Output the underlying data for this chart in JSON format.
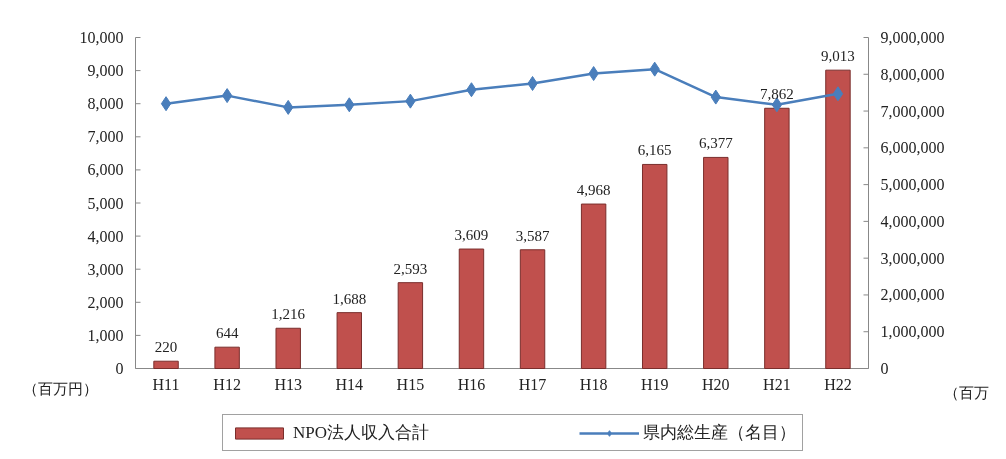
{
  "chart_data": {
    "type": "bar",
    "categories": [
      "H11",
      "H12",
      "H13",
      "H14",
      "H15",
      "H16",
      "H17",
      "H18",
      "H19",
      "H20",
      "H21",
      "H22"
    ],
    "ylabel": "（百万円）",
    "y2label": "（百万",
    "ylim": [
      0,
      10000
    ],
    "yticks": [
      0,
      {
        "value": 1000,
        "label": "1,000"
      },
      {
        "value": 2000,
        "label": "2,000"
      },
      {
        "value": 3000,
        "label": "3,000"
      },
      {
        "value": 4000,
        "label": "4,000"
      },
      {
        "value": 5000,
        "label": "5,000"
      },
      {
        "value": 6000,
        "label": "6,000"
      },
      {
        "value": 7000,
        "label": "7,000"
      },
      {
        "value": 8000,
        "label": "8,000"
      },
      {
        "value": 9000,
        "label": "9,000"
      },
      {
        "value": 10000,
        "label": "10,000"
      }
    ],
    "y2lim": [
      0,
      9000000
    ],
    "y2ticks": [
      0,
      {
        "value": 1000000,
        "label": "1,000,000"
      },
      {
        "value": 2000000,
        "label": "2,000,000"
      },
      {
        "value": 3000000,
        "label": "3,000,000"
      },
      {
        "value": 4000000,
        "label": "4,000,000"
      },
      {
        "value": 5000000,
        "label": "5,000,000"
      },
      {
        "value": 6000000,
        "label": "6,000,000"
      },
      {
        "value": 7000000,
        "label": "7,000,000"
      },
      {
        "value": 8000000,
        "label": "8,000,000"
      },
      {
        "value": 9000000,
        "label": "9,000,000"
      }
    ],
    "series": [
      {
        "name": "NPO法人収入合計",
        "color": "#c0504d",
        "values": [
          220,
          644,
          1216,
          1688,
          2593,
          3609,
          3587,
          4968,
          6165,
          6377,
          7862,
          9013
        ],
        "value_labels": [
          "220",
          "644",
          "1,216",
          "1,688",
          "2,593",
          "3,609",
          "3,587",
          "4,968",
          "6,165",
          "6,377",
          "7,862",
          "9,013"
        ]
      },
      {
        "name": "県内総生産（名目）",
        "type": "line",
        "axis": "y2",
        "color": "#4a7ebb",
        "marker": "diamond",
        "values": [
          7200000,
          7420000,
          7100000,
          7170000,
          7270000,
          7580000,
          7750000,
          8020000,
          8140000,
          7380000,
          7170000,
          7470000
        ]
      }
    ],
    "legend": "bottom",
    "grid": false
  }
}
